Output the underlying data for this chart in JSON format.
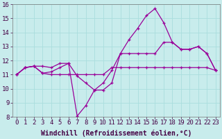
{
  "xlabel": "Windchill (Refroidissement éolien,°C)",
  "background_color": "#c8ecec",
  "line_color": "#990099",
  "grid_color": "#aadddd",
  "xlim": [
    -0.5,
    23.5
  ],
  "ylim": [
    8,
    16
  ],
  "xticks": [
    0,
    1,
    2,
    3,
    4,
    5,
    6,
    7,
    8,
    9,
    10,
    11,
    12,
    13,
    14,
    15,
    16,
    17,
    18,
    19,
    20,
    21,
    22,
    23
  ],
  "yticks": [
    8,
    9,
    10,
    11,
    12,
    13,
    14,
    15,
    16
  ],
  "series": [
    [
      11.0,
      11.5,
      11.6,
      11.1,
      11.0,
      11.0,
      11.0,
      11.0,
      11.0,
      11.0,
      11.0,
      11.5,
      11.5,
      11.5,
      11.5,
      11.5,
      11.5,
      11.5,
      11.5,
      11.5,
      11.5,
      11.5,
      11.5,
      11.3
    ],
    [
      11.0,
      11.5,
      11.6,
      11.6,
      11.5,
      11.8,
      11.8,
      10.9,
      10.4,
      9.9,
      9.9,
      10.4,
      12.5,
      12.5,
      12.5,
      12.5,
      12.5,
      13.3,
      13.3,
      12.8,
      12.8,
      13.0,
      12.5,
      11.3
    ],
    [
      11.0,
      11.5,
      11.6,
      11.1,
      11.2,
      11.5,
      11.8,
      8.05,
      8.8,
      9.9,
      10.4,
      11.3,
      12.5,
      13.5,
      14.3,
      15.2,
      15.7,
      14.7,
      13.3,
      12.8,
      12.8,
      13.0,
      12.5,
      11.3
    ]
  ],
  "fontsize_xlabel": 7,
  "fontsize_ticks": 6.5,
  "marker": "+",
  "markersize": 3,
  "linewidth": 0.9,
  "fig_width": 3.2,
  "fig_height": 2.0,
  "dpi": 100
}
